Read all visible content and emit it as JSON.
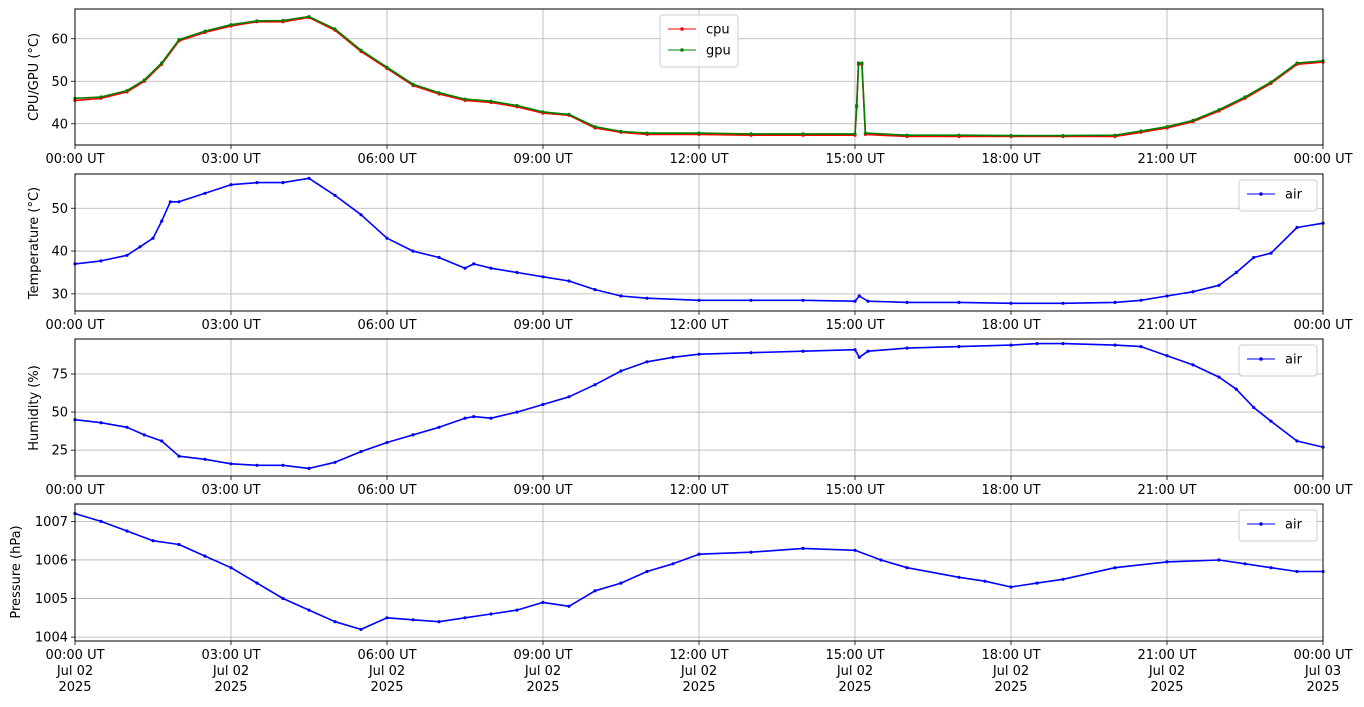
{
  "chart_data": [
    {
      "type": "line",
      "ylabel": "CPU/GPU (°C)",
      "xlim": [
        "2025-07-02T00:00",
        "2025-07-03T00:00"
      ],
      "ylim": [
        35,
        67
      ],
      "yticks": [
        40,
        50,
        60
      ],
      "xtick_labels": [
        "00:00 UT",
        "03:00 UT",
        "06:00 UT",
        "09:00 UT",
        "12:00 UT",
        "15:00 UT",
        "18:00 UT",
        "21:00 UT",
        "00:00 UT"
      ],
      "grid": true,
      "legend_position": "upper-center",
      "series": [
        {
          "name": "cpu",
          "color": "#ff0000",
          "x": [
            "2025-07-02T00:00",
            "2025-07-02T00:30",
            "2025-07-02T01:00",
            "2025-07-02T01:20",
            "2025-07-02T01:40",
            "2025-07-02T02:00",
            "2025-07-02T02:30",
            "2025-07-02T03:00",
            "2025-07-02T03:30",
            "2025-07-02T04:00",
            "2025-07-02T04:30",
            "2025-07-02T05:00",
            "2025-07-02T05:30",
            "2025-07-02T06:00",
            "2025-07-02T06:30",
            "2025-07-02T07:00",
            "2025-07-02T07:30",
            "2025-07-02T08:00",
            "2025-07-02T08:30",
            "2025-07-02T09:00",
            "2025-07-02T09:30",
            "2025-07-02T10:00",
            "2025-07-02T10:30",
            "2025-07-02T11:00",
            "2025-07-02T12:00",
            "2025-07-02T13:00",
            "2025-07-02T14:00",
            "2025-07-02T15:00",
            "2025-07-02T15:02",
            "2025-07-02T15:04",
            "2025-07-02T15:08",
            "2025-07-02T15:12",
            "2025-07-02T16:00",
            "2025-07-02T17:00",
            "2025-07-02T18:00",
            "2025-07-02T19:00",
            "2025-07-02T20:00",
            "2025-07-02T20:30",
            "2025-07-02T21:00",
            "2025-07-02T21:30",
            "2025-07-02T22:00",
            "2025-07-02T22:30",
            "2025-07-02T23:00",
            "2025-07-02T23:30",
            "2025-07-03T00:00"
          ],
          "y": [
            45.5,
            46,
            47.5,
            50,
            54,
            59.5,
            61.5,
            63,
            64,
            64,
            65,
            62,
            57,
            53,
            49,
            47,
            45.5,
            45,
            44,
            42.5,
            42,
            39,
            38,
            37.5,
            37.5,
            37.3,
            37.3,
            37.3,
            44,
            54,
            54,
            37.5,
            37,
            37,
            37,
            37,
            37,
            38,
            39,
            40.5,
            43,
            46,
            49.5,
            54,
            54.5
          ]
        },
        {
          "name": "gpu",
          "color": "#008000",
          "x": [
            "2025-07-02T00:00",
            "2025-07-02T00:30",
            "2025-07-02T01:00",
            "2025-07-02T01:20",
            "2025-07-02T01:40",
            "2025-07-02T02:00",
            "2025-07-02T02:30",
            "2025-07-02T03:00",
            "2025-07-02T03:30",
            "2025-07-02T04:00",
            "2025-07-02T04:30",
            "2025-07-02T05:00",
            "2025-07-02T05:30",
            "2025-07-02T06:00",
            "2025-07-02T06:30",
            "2025-07-02T07:00",
            "2025-07-02T07:30",
            "2025-07-02T08:00",
            "2025-07-02T08:30",
            "2025-07-02T09:00",
            "2025-07-02T09:30",
            "2025-07-02T10:00",
            "2025-07-02T10:30",
            "2025-07-02T11:00",
            "2025-07-02T12:00",
            "2025-07-02T13:00",
            "2025-07-02T14:00",
            "2025-07-02T15:00",
            "2025-07-02T15:02",
            "2025-07-02T15:04",
            "2025-07-02T15:08",
            "2025-07-02T15:12",
            "2025-07-02T16:00",
            "2025-07-02T17:00",
            "2025-07-02T18:00",
            "2025-07-02T19:00",
            "2025-07-02T20:00",
            "2025-07-02T20:30",
            "2025-07-02T21:00",
            "2025-07-02T21:30",
            "2025-07-02T22:00",
            "2025-07-02T22:30",
            "2025-07-02T23:00",
            "2025-07-02T23:30",
            "2025-07-03T00:00"
          ],
          "y": [
            46,
            46.3,
            47.8,
            50.3,
            54.3,
            59.8,
            61.8,
            63.3,
            64.2,
            64.3,
            65.2,
            62.3,
            57.3,
            53.3,
            49.3,
            47.3,
            45.8,
            45.3,
            44.3,
            42.8,
            42.2,
            39.3,
            38.2,
            37.8,
            37.8,
            37.6,
            37.6,
            37.6,
            44.3,
            54.3,
            54.3,
            37.8,
            37.3,
            37.3,
            37.2,
            37.2,
            37.3,
            38.3,
            39.3,
            40.8,
            43.3,
            46.3,
            49.8,
            54.3,
            54.8
          ]
        }
      ]
    },
    {
      "type": "line",
      "ylabel": "Temperature (°C)",
      "xlim": [
        "2025-07-02T00:00",
        "2025-07-03T00:00"
      ],
      "ylim": [
        26,
        58
      ],
      "yticks": [
        30,
        40,
        50
      ],
      "xtick_labels": [
        "00:00 UT",
        "03:00 UT",
        "06:00 UT",
        "09:00 UT",
        "12:00 UT",
        "15:00 UT",
        "18:00 UT",
        "21:00 UT",
        "00:00 UT"
      ],
      "grid": true,
      "legend_position": "top-right",
      "series": [
        {
          "name": "air",
          "color": "#0000ff",
          "x": [
            "2025-07-02T00:00",
            "2025-07-02T00:30",
            "2025-07-02T01:00",
            "2025-07-02T01:15",
            "2025-07-02T01:30",
            "2025-07-02T01:40",
            "2025-07-02T01:50",
            "2025-07-02T02:00",
            "2025-07-02T02:30",
            "2025-07-02T03:00",
            "2025-07-02T03:30",
            "2025-07-02T04:00",
            "2025-07-02T04:30",
            "2025-07-02T05:00",
            "2025-07-02T05:30",
            "2025-07-02T06:00",
            "2025-07-02T06:30",
            "2025-07-02T07:00",
            "2025-07-02T07:30",
            "2025-07-02T07:40",
            "2025-07-02T08:00",
            "2025-07-02T08:30",
            "2025-07-02T09:00",
            "2025-07-02T09:30",
            "2025-07-02T10:00",
            "2025-07-02T10:30",
            "2025-07-02T11:00",
            "2025-07-02T12:00",
            "2025-07-02T13:00",
            "2025-07-02T14:00",
            "2025-07-02T15:00",
            "2025-07-02T15:05",
            "2025-07-02T15:15",
            "2025-07-02T16:00",
            "2025-07-02T17:00",
            "2025-07-02T18:00",
            "2025-07-02T19:00",
            "2025-07-02T20:00",
            "2025-07-02T20:30",
            "2025-07-02T21:00",
            "2025-07-02T21:30",
            "2025-07-02T22:00",
            "2025-07-02T22:20",
            "2025-07-02T22:40",
            "2025-07-02T23:00",
            "2025-07-02T23:30",
            "2025-07-03T00:00"
          ],
          "y": [
            37,
            37.7,
            39,
            41,
            43,
            47,
            51.5,
            51.5,
            53.5,
            55.5,
            56,
            56,
            57,
            53,
            48.5,
            43,
            40,
            38.5,
            36,
            37,
            36,
            35,
            34,
            33,
            31,
            29.5,
            29,
            28.5,
            28.5,
            28.5,
            28.3,
            29.5,
            28.3,
            28,
            28,
            27.8,
            27.8,
            28,
            28.5,
            29.5,
            30.5,
            32,
            35,
            38.5,
            39.5,
            45.5,
            46.5
          ]
        }
      ]
    },
    {
      "type": "line",
      "ylabel": "Humidity (%)",
      "xlim": [
        "2025-07-02T00:00",
        "2025-07-03T00:00"
      ],
      "ylim": [
        8,
        98
      ],
      "yticks": [
        25,
        50,
        75
      ],
      "xtick_labels": [
        "00:00 UT",
        "03:00 UT",
        "06:00 UT",
        "09:00 UT",
        "12:00 UT",
        "15:00 UT",
        "18:00 UT",
        "21:00 UT",
        "00:00 UT"
      ],
      "grid": true,
      "legend_position": "top-right",
      "series": [
        {
          "name": "air",
          "color": "#0000ff",
          "x": [
            "2025-07-02T00:00",
            "2025-07-02T00:30",
            "2025-07-02T01:00",
            "2025-07-02T01:20",
            "2025-07-02T01:40",
            "2025-07-02T02:00",
            "2025-07-02T02:30",
            "2025-07-02T03:00",
            "2025-07-02T03:30",
            "2025-07-02T04:00",
            "2025-07-02T04:30",
            "2025-07-02T05:00",
            "2025-07-02T05:30",
            "2025-07-02T06:00",
            "2025-07-02T06:30",
            "2025-07-02T07:00",
            "2025-07-02T07:30",
            "2025-07-02T07:40",
            "2025-07-02T08:00",
            "2025-07-02T08:30",
            "2025-07-02T09:00",
            "2025-07-02T09:30",
            "2025-07-02T10:00",
            "2025-07-02T10:30",
            "2025-07-02T11:00",
            "2025-07-02T11:30",
            "2025-07-02T12:00",
            "2025-07-02T13:00",
            "2025-07-02T14:00",
            "2025-07-02T15:00",
            "2025-07-02T15:05",
            "2025-07-02T15:15",
            "2025-07-02T16:00",
            "2025-07-02T17:00",
            "2025-07-02T18:00",
            "2025-07-02T18:30",
            "2025-07-02T19:00",
            "2025-07-02T20:00",
            "2025-07-02T20:30",
            "2025-07-02T21:00",
            "2025-07-02T21:30",
            "2025-07-02T22:00",
            "2025-07-02T22:20",
            "2025-07-02T22:40",
            "2025-07-02T23:00",
            "2025-07-02T23:30",
            "2025-07-03T00:00"
          ],
          "y": [
            45,
            43,
            40,
            35,
            31,
            21,
            19,
            16,
            15,
            15,
            13,
            17,
            24,
            30,
            35,
            40,
            46,
            47,
            46,
            50,
            55,
            60,
            68,
            77,
            83,
            86,
            88,
            89,
            90,
            91,
            86,
            90,
            92,
            93,
            94,
            95,
            95,
            94,
            93,
            87,
            81,
            73,
            65,
            53,
            44,
            31,
            27
          ]
        }
      ]
    },
    {
      "type": "line",
      "ylabel": "Pressure (hPa)",
      "xlim": [
        "2025-07-02T00:00",
        "2025-07-03T00:00"
      ],
      "ylim": [
        1003.9,
        1007.45
      ],
      "yticks": [
        1004,
        1005,
        1006,
        1007
      ],
      "xtick_labels": [
        "00:00 UT\nJul 02\n2025",
        "03:00 UT\nJul 02\n2025",
        "06:00 UT\nJul 02\n2025",
        "09:00 UT\nJul 02\n2025",
        "12:00 UT\nJul 02\n2025",
        "15:00 UT\nJul 02\n2025",
        "18:00 UT\nJul 02\n2025",
        "21:00 UT\nJul 02\n2025",
        "00:00 UT\nJul 03\n2025"
      ],
      "grid": true,
      "legend_position": "top-right",
      "series": [
        {
          "name": "air",
          "color": "#0000ff",
          "x": [
            "2025-07-02T00:00",
            "2025-07-02T00:30",
            "2025-07-02T01:00",
            "2025-07-02T01:30",
            "2025-07-02T02:00",
            "2025-07-02T02:30",
            "2025-07-02T03:00",
            "2025-07-02T03:30",
            "2025-07-02T04:00",
            "2025-07-02T04:30",
            "2025-07-02T05:00",
            "2025-07-02T05:30",
            "2025-07-02T06:00",
            "2025-07-02T06:30",
            "2025-07-02T07:00",
            "2025-07-02T07:30",
            "2025-07-02T08:00",
            "2025-07-02T08:30",
            "2025-07-02T09:00",
            "2025-07-02T09:30",
            "2025-07-02T10:00",
            "2025-07-02T10:30",
            "2025-07-02T11:00",
            "2025-07-02T11:30",
            "2025-07-02T12:00",
            "2025-07-02T13:00",
            "2025-07-02T14:00",
            "2025-07-02T15:00",
            "2025-07-02T15:30",
            "2025-07-02T16:00",
            "2025-07-02T17:00",
            "2025-07-02T17:30",
            "2025-07-02T18:00",
            "2025-07-02T18:30",
            "2025-07-02T19:00",
            "2025-07-02T20:00",
            "2025-07-02T21:00",
            "2025-07-02T22:00",
            "2025-07-02T22:30",
            "2025-07-02T23:00",
            "2025-07-02T23:30",
            "2025-07-03T00:00"
          ],
          "y": [
            1007.2,
            1007.0,
            1006.75,
            1006.5,
            1006.4,
            1006.1,
            1005.8,
            1005.4,
            1005.0,
            1004.7,
            1004.4,
            1004.2,
            1004.5,
            1004.45,
            1004.4,
            1004.5,
            1004.6,
            1004.7,
            1004.9,
            1004.8,
            1005.2,
            1005.4,
            1005.7,
            1005.9,
            1006.15,
            1006.2,
            1006.3,
            1006.25,
            1006.0,
            1005.8,
            1005.55,
            1005.45,
            1005.3,
            1005.4,
            1005.5,
            1005.8,
            1005.95,
            1006.0,
            1005.9,
            1005.8,
            1005.7,
            1005.7
          ]
        }
      ]
    }
  ]
}
